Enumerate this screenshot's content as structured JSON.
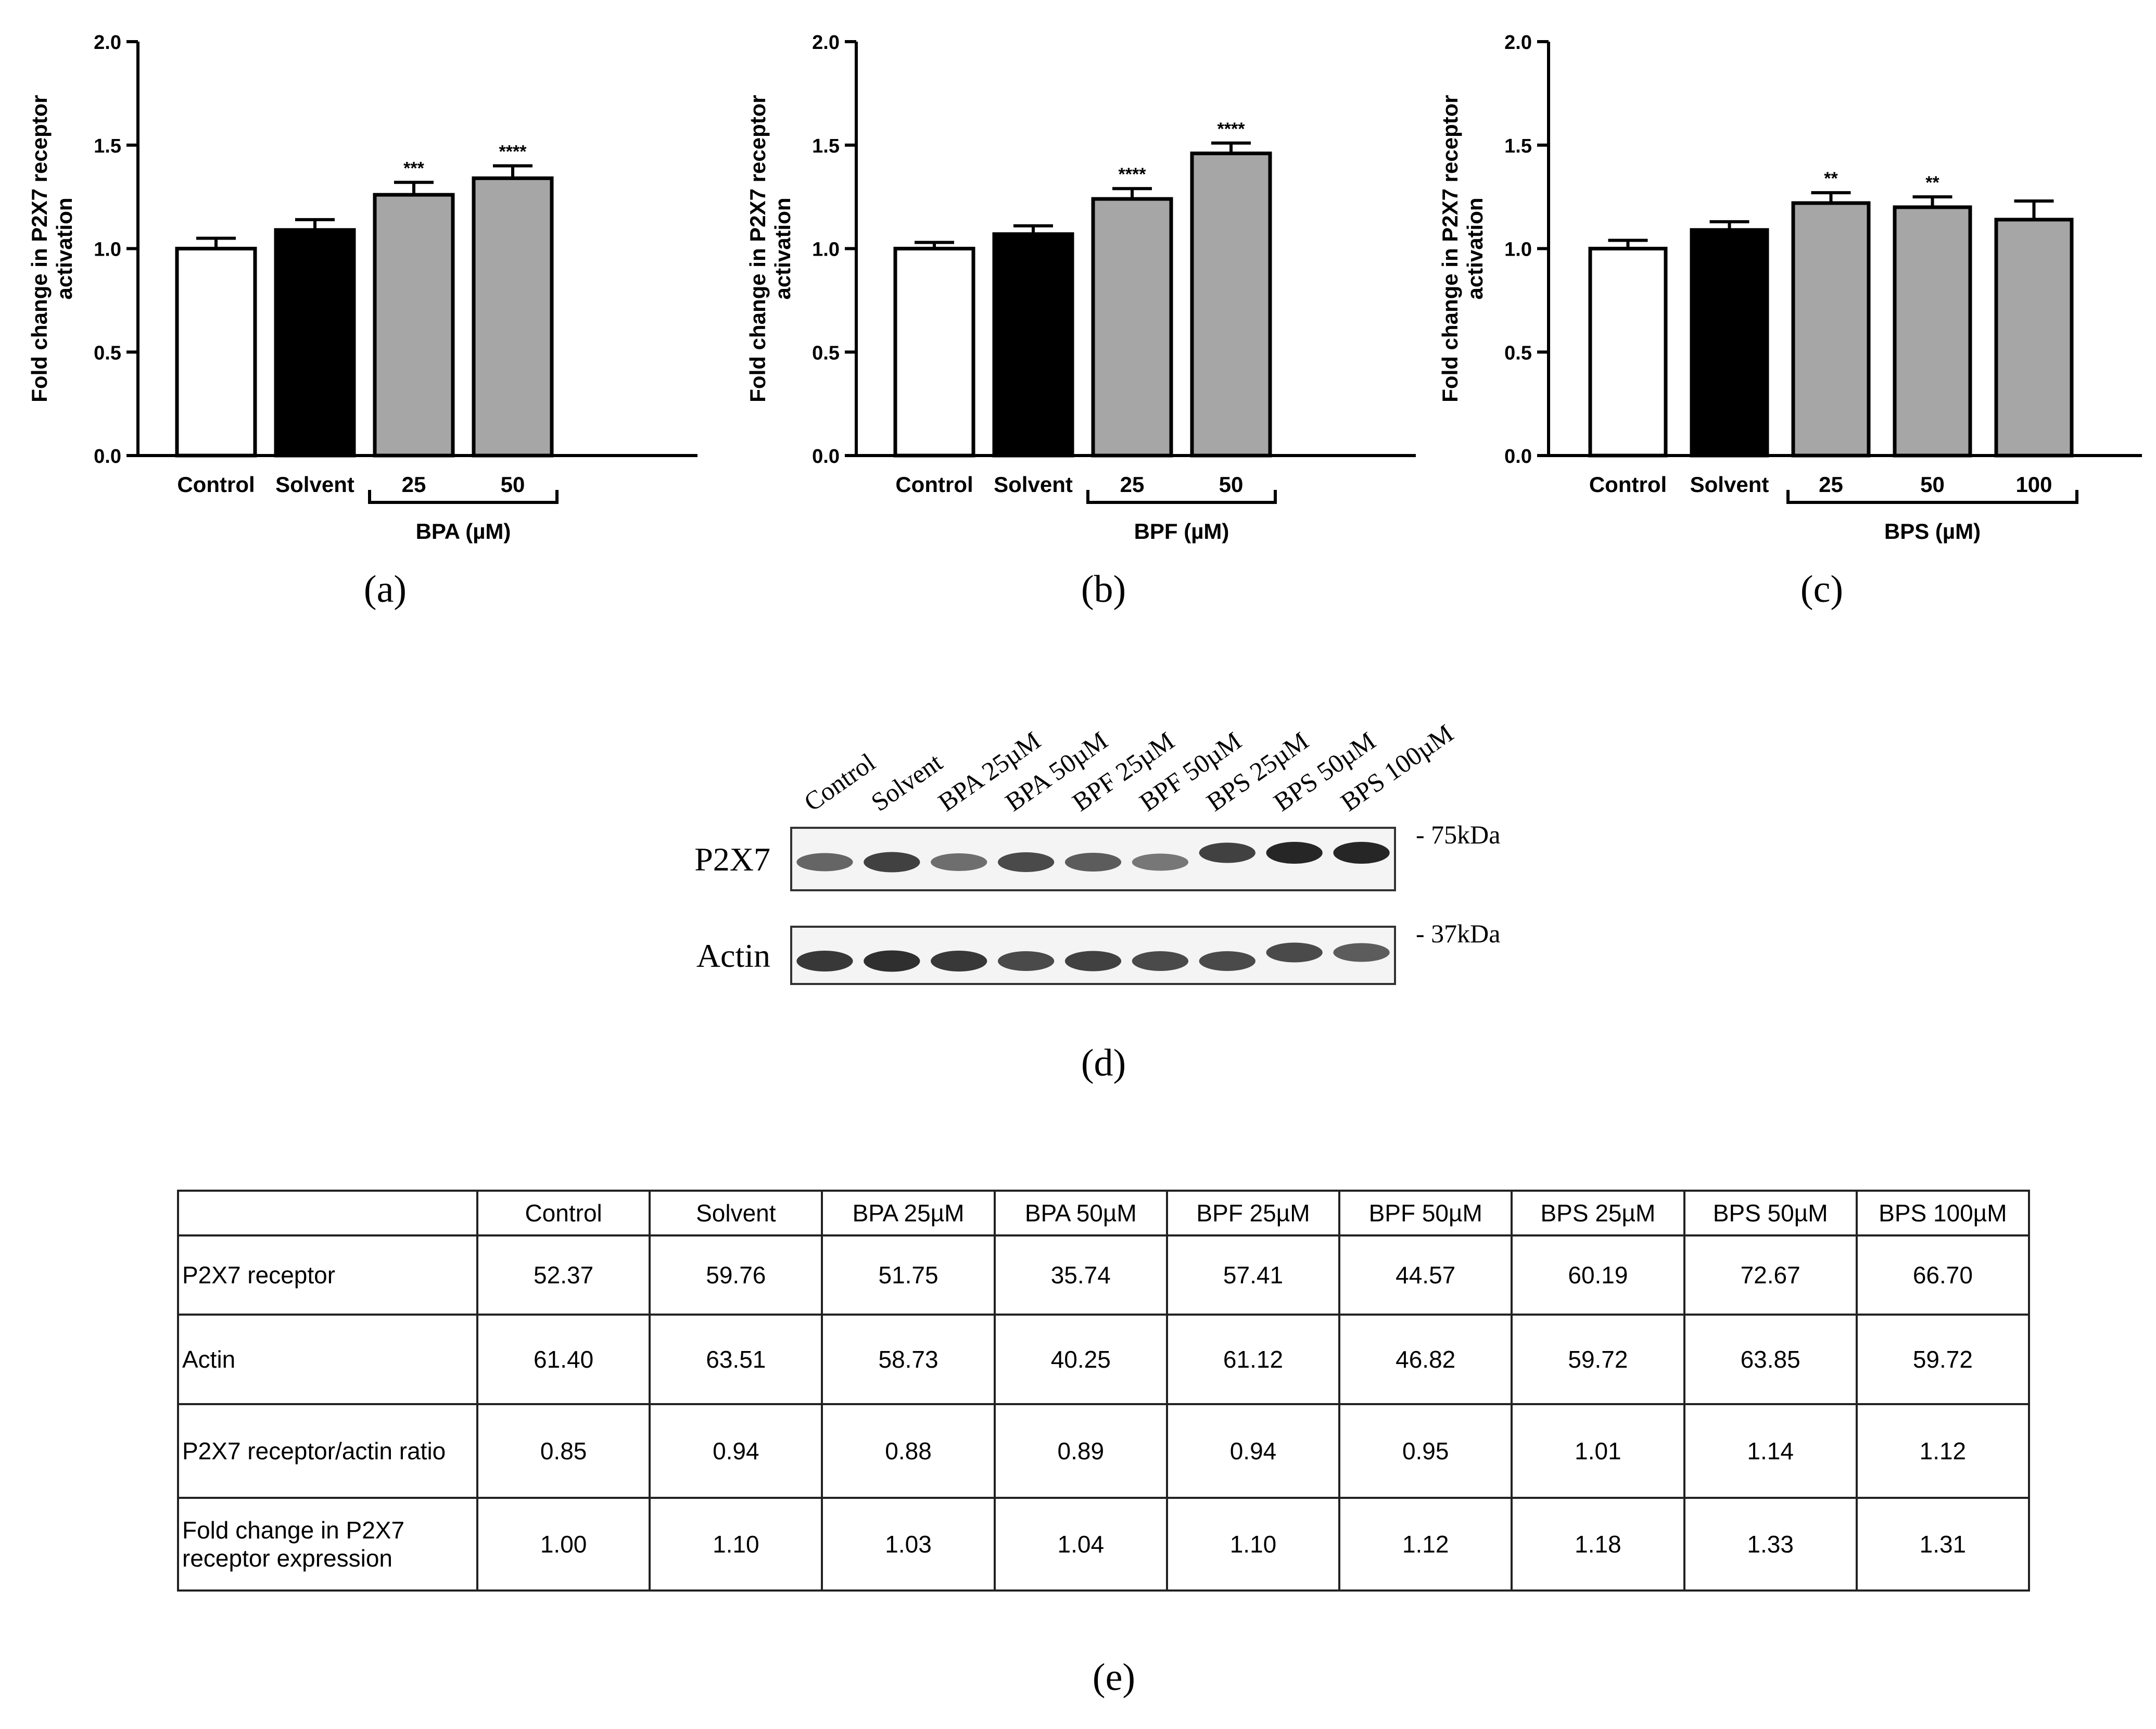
{
  "panels": [
    {
      "label": "(a)",
      "chart_data": {
        "type": "bar",
        "ylabel": "Fold change in P2X7 receptor activation",
        "ylim": [
          0,
          2.0
        ],
        "yticks": [
          "0.0",
          "0.5",
          "1.0",
          "1.5",
          "2.0"
        ],
        "categories": [
          "Control",
          "Solvent",
          "25",
          "50"
        ],
        "values": [
          1.0,
          1.09,
          1.26,
          1.34
        ],
        "errors": [
          0.05,
          0.05,
          0.06,
          0.06
        ],
        "fills": [
          "#ffffff",
          "#000000",
          "#a6a6a6",
          "#a6a6a6"
        ],
        "significance": [
          "",
          "",
          "***",
          "****"
        ],
        "group_label": "BPA (µM)",
        "group_start": 2
      }
    },
    {
      "label": "(b)",
      "chart_data": {
        "type": "bar",
        "ylabel": "Fold change in P2X7 receptor activation",
        "ylim": [
          0,
          2.0
        ],
        "yticks": [
          "0.0",
          "0.5",
          "1.0",
          "1.5",
          "2.0"
        ],
        "categories": [
          "Control",
          "Solvent",
          "25",
          "50"
        ],
        "values": [
          1.0,
          1.07,
          1.24,
          1.46
        ],
        "errors": [
          0.03,
          0.04,
          0.05,
          0.05
        ],
        "fills": [
          "#ffffff",
          "#000000",
          "#a6a6a6",
          "#a6a6a6"
        ],
        "significance": [
          "",
          "",
          "****",
          "****"
        ],
        "group_label": "BPF (µM)",
        "group_start": 2
      }
    },
    {
      "label": "(c)",
      "chart_data": {
        "type": "bar",
        "ylabel": "Fold change in P2X7 receptor activation",
        "ylim": [
          0,
          2.0
        ],
        "yticks": [
          "0.0",
          "0.5",
          "1.0",
          "1.5",
          "2.0"
        ],
        "categories": [
          "Control",
          "Solvent",
          "25",
          "50",
          "100"
        ],
        "values": [
          1.0,
          1.09,
          1.22,
          1.2,
          1.14
        ],
        "errors": [
          0.04,
          0.04,
          0.05,
          0.05,
          0.09
        ],
        "fills": [
          "#ffffff",
          "#000000",
          "#a6a6a6",
          "#a6a6a6",
          "#a6a6a6"
        ],
        "significance": [
          "",
          "",
          "**",
          "**",
          ""
        ],
        "group_label": "BPS (µM)",
        "group_start": 2
      }
    }
  ],
  "blot": {
    "label": "(d)",
    "lanes": [
      "Control",
      "Solvent",
      "BPA 25µM",
      "BPA 50µM",
      "BPF 25µM",
      "BPF 50µM",
      "BPS 25µM",
      "BPS 50µM",
      "BPS 100µM"
    ],
    "rows": [
      {
        "name": "P2X7",
        "marker": "- 75kDa",
        "intensity": [
          0.55,
          0.75,
          0.5,
          0.7,
          0.6,
          0.45,
          0.75,
          0.9,
          0.9
        ]
      },
      {
        "name": "Actin",
        "marker": "- 37kDa",
        "intensity": [
          0.8,
          0.85,
          0.8,
          0.7,
          0.75,
          0.7,
          0.7,
          0.7,
          0.6
        ]
      }
    ]
  },
  "table": {
    "label": "(e)",
    "header": [
      "",
      "Control",
      "Solvent",
      "BPA 25µM",
      "BPA 50µM",
      "BPF 25µM",
      "BPF 50µM",
      "BPS 25µM",
      "BPS 50µM",
      "BPS 100µM"
    ],
    "rows": [
      [
        "P2X7 receptor",
        "52.37",
        "59.76",
        "51.75",
        "35.74",
        "57.41",
        "44.57",
        "60.19",
        "72.67",
        "66.70"
      ],
      [
        "Actin",
        "61.40",
        "63.51",
        "58.73",
        "40.25",
        "61.12",
        "46.82",
        "59.72",
        "63.85",
        "59.72"
      ],
      [
        "P2X7 receptor/actin ratio",
        "0.85",
        "0.94",
        "0.88",
        "0.89",
        "0.94",
        "0.95",
        "1.01",
        "1.14",
        "1.12"
      ],
      [
        "Fold change in P2X7 receptor expression",
        "1.00",
        "1.10",
        "1.03",
        "1.04",
        "1.10",
        "1.12",
        "1.18",
        "1.33",
        "1.31"
      ]
    ]
  }
}
